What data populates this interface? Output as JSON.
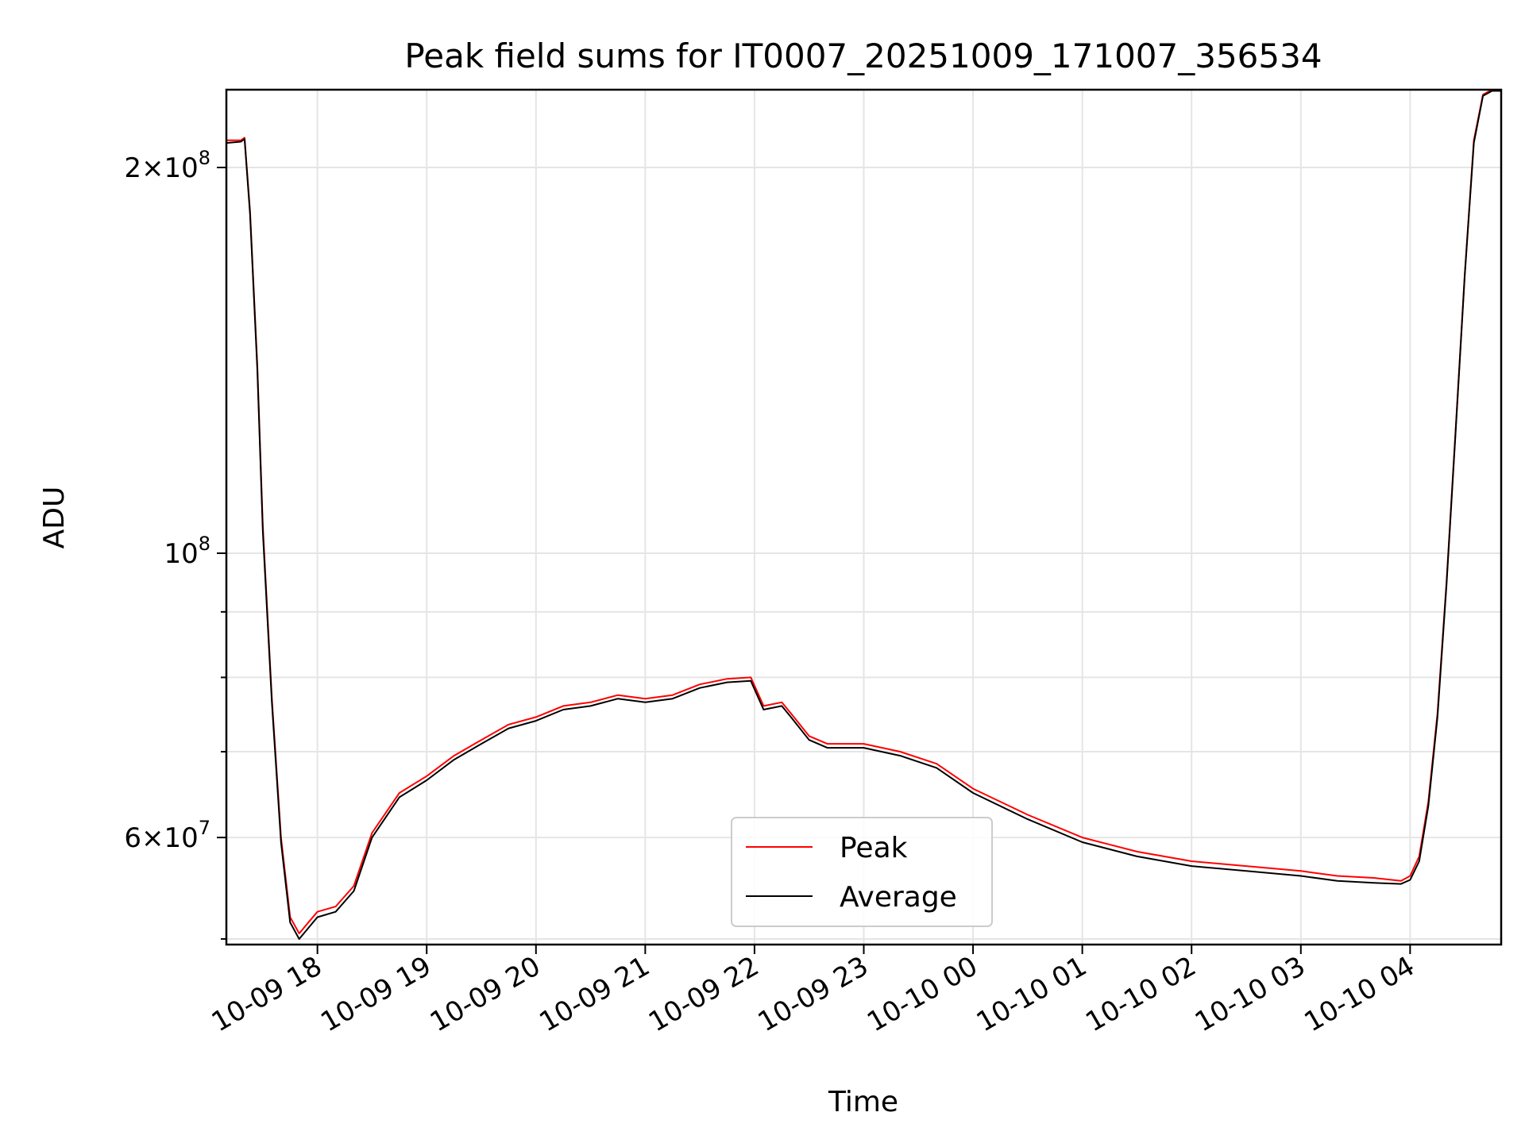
{
  "chart_data": {
    "type": "line",
    "title": "Peak field sums for IT0007_20251009_171007_356534",
    "xlabel": "Time",
    "ylabel": "ADU",
    "yscale": "log",
    "grid": true,
    "legend_position": "lower-center",
    "x_range": [
      "2025-10-09 17:10",
      "2025-10-10 04:50"
    ],
    "ylim": [
      49500000,
      230000000
    ],
    "x_ticks": [
      {
        "t": "2025-10-09 18:00",
        "label": "10-09 18"
      },
      {
        "t": "2025-10-09 19:00",
        "label": "10-09 19"
      },
      {
        "t": "2025-10-09 20:00",
        "label": "10-09 20"
      },
      {
        "t": "2025-10-09 21:00",
        "label": "10-09 21"
      },
      {
        "t": "2025-10-09 22:00",
        "label": "10-09 22"
      },
      {
        "t": "2025-10-09 23:00",
        "label": "10-09 23"
      },
      {
        "t": "2025-10-10 00:00",
        "label": "10-10 00"
      },
      {
        "t": "2025-10-10 01:00",
        "label": "10-10 01"
      },
      {
        "t": "2025-10-10 02:00",
        "label": "10-10 02"
      },
      {
        "t": "2025-10-10 03:00",
        "label": "10-10 03"
      },
      {
        "t": "2025-10-10 04:00",
        "label": "10-10 04"
      }
    ],
    "y_major_ticks": [
      {
        "value": 60000000,
        "mant": "6",
        "exp": "7"
      },
      {
        "value": 100000000,
        "mant": "",
        "exp": "8"
      },
      {
        "value": 200000000,
        "mant": "2",
        "exp": "8"
      }
    ],
    "y_minor_ticks": [
      50000000,
      70000000,
      80000000,
      90000000
    ],
    "series": [
      {
        "name": "Peak",
        "color": "#ff0000",
        "x": [
          "2025-10-09 17:10",
          "2025-10-09 17:18",
          "2025-10-09 17:20",
          "2025-10-09 17:23",
          "2025-10-09 17:27",
          "2025-10-09 17:30",
          "2025-10-09 17:35",
          "2025-10-09 17:40",
          "2025-10-09 17:45",
          "2025-10-09 17:50",
          "2025-10-09 17:55",
          "2025-10-09 18:00",
          "2025-10-09 18:10",
          "2025-10-09 18:20",
          "2025-10-09 18:30",
          "2025-10-09 18:45",
          "2025-10-09 19:00",
          "2025-10-09 19:15",
          "2025-10-09 19:30",
          "2025-10-09 19:45",
          "2025-10-09 20:00",
          "2025-10-09 20:15",
          "2025-10-09 20:30",
          "2025-10-09 20:45",
          "2025-10-09 21:00",
          "2025-10-09 21:15",
          "2025-10-09 21:30",
          "2025-10-09 21:45",
          "2025-10-09 21:58",
          "2025-10-09 22:05",
          "2025-10-09 22:15",
          "2025-10-09 22:20",
          "2025-10-09 22:30",
          "2025-10-09 22:40",
          "2025-10-09 23:00",
          "2025-10-09 23:20",
          "2025-10-09 23:40",
          "2025-10-10 00:00",
          "2025-10-10 00:30",
          "2025-10-10 01:00",
          "2025-10-10 01:30",
          "2025-10-10 02:00",
          "2025-10-10 02:30",
          "2025-10-10 03:00",
          "2025-10-10 03:20",
          "2025-10-10 03:40",
          "2025-10-10 03:55",
          "2025-10-10 04:00",
          "2025-10-10 04:05",
          "2025-10-10 04:10",
          "2025-10-10 04:15",
          "2025-10-10 04:20",
          "2025-10-10 04:25",
          "2025-10-10 04:30",
          "2025-10-10 04:35",
          "2025-10-10 04:40",
          "2025-10-10 04:45",
          "2025-10-10 04:50"
        ],
        "y": [
          210000000,
          210000000,
          211000000,
          185000000,
          140000000,
          105000000,
          77000000,
          60000000,
          52000000,
          50500000,
          51500000,
          52500000,
          53000000,
          55000000,
          60500000,
          65000000,
          67000000,
          69500000,
          71500000,
          73500000,
          74500000,
          76000000,
          76500000,
          77500000,
          77000000,
          77500000,
          79000000,
          79800000,
          80000000,
          76000000,
          76500000,
          75000000,
          72000000,
          71000000,
          71000000,
          70000000,
          68500000,
          65500000,
          62500000,
          60000000,
          58500000,
          57500000,
          57000000,
          56500000,
          56000000,
          55800000,
          55500000,
          56000000,
          58000000,
          64000000,
          75000000,
          95000000,
          125000000,
          165000000,
          210000000,
          228000000,
          230000000,
          230000000
        ]
      },
      {
        "name": "Average",
        "color": "#000000",
        "x": [
          "2025-10-09 17:10",
          "2025-10-09 17:18",
          "2025-10-09 17:20",
          "2025-10-09 17:23",
          "2025-10-09 17:27",
          "2025-10-09 17:30",
          "2025-10-09 17:35",
          "2025-10-09 17:40",
          "2025-10-09 17:45",
          "2025-10-09 17:50",
          "2025-10-09 17:55",
          "2025-10-09 18:00",
          "2025-10-09 18:10",
          "2025-10-09 18:20",
          "2025-10-09 18:30",
          "2025-10-09 18:45",
          "2025-10-09 19:00",
          "2025-10-09 19:15",
          "2025-10-09 19:30",
          "2025-10-09 19:45",
          "2025-10-09 20:00",
          "2025-10-09 20:15",
          "2025-10-09 20:30",
          "2025-10-09 20:45",
          "2025-10-09 21:00",
          "2025-10-09 21:15",
          "2025-10-09 21:30",
          "2025-10-09 21:45",
          "2025-10-09 21:58",
          "2025-10-09 22:05",
          "2025-10-09 22:15",
          "2025-10-09 22:20",
          "2025-10-09 22:30",
          "2025-10-09 22:40",
          "2025-10-09 23:00",
          "2025-10-09 23:20",
          "2025-10-09 23:40",
          "2025-10-10 00:00",
          "2025-10-10 00:30",
          "2025-10-10 01:00",
          "2025-10-10 01:30",
          "2025-10-10 02:00",
          "2025-10-10 02:30",
          "2025-10-10 03:00",
          "2025-10-10 03:20",
          "2025-10-10 03:40",
          "2025-10-10 03:55",
          "2025-10-10 04:00",
          "2025-10-10 04:05",
          "2025-10-10 04:10",
          "2025-10-10 04:15",
          "2025-10-10 04:20",
          "2025-10-10 04:25",
          "2025-10-10 04:30",
          "2025-10-10 04:35",
          "2025-10-10 04:40",
          "2025-10-10 04:45",
          "2025-10-10 04:50"
        ],
        "y": [
          209000000,
          209500000,
          210500000,
          184000000,
          139000000,
          104000000,
          76500000,
          59500000,
          51500000,
          50000000,
          51000000,
          52000000,
          52500000,
          54500000,
          60000000,
          64500000,
          66500000,
          69000000,
          71000000,
          73000000,
          74000000,
          75500000,
          76000000,
          77000000,
          76500000,
          77000000,
          78500000,
          79300000,
          79500000,
          75500000,
          76000000,
          74500000,
          71500000,
          70500000,
          70500000,
          69500000,
          68000000,
          65000000,
          62000000,
          59500000,
          58000000,
          57000000,
          56500000,
          56000000,
          55500000,
          55300000,
          55200000,
          55600000,
          57500000,
          63500000,
          74500000,
          94500000,
          124500000,
          164500000,
          209000000,
          227500000,
          229500000,
          229500000
        ]
      }
    ]
  }
}
